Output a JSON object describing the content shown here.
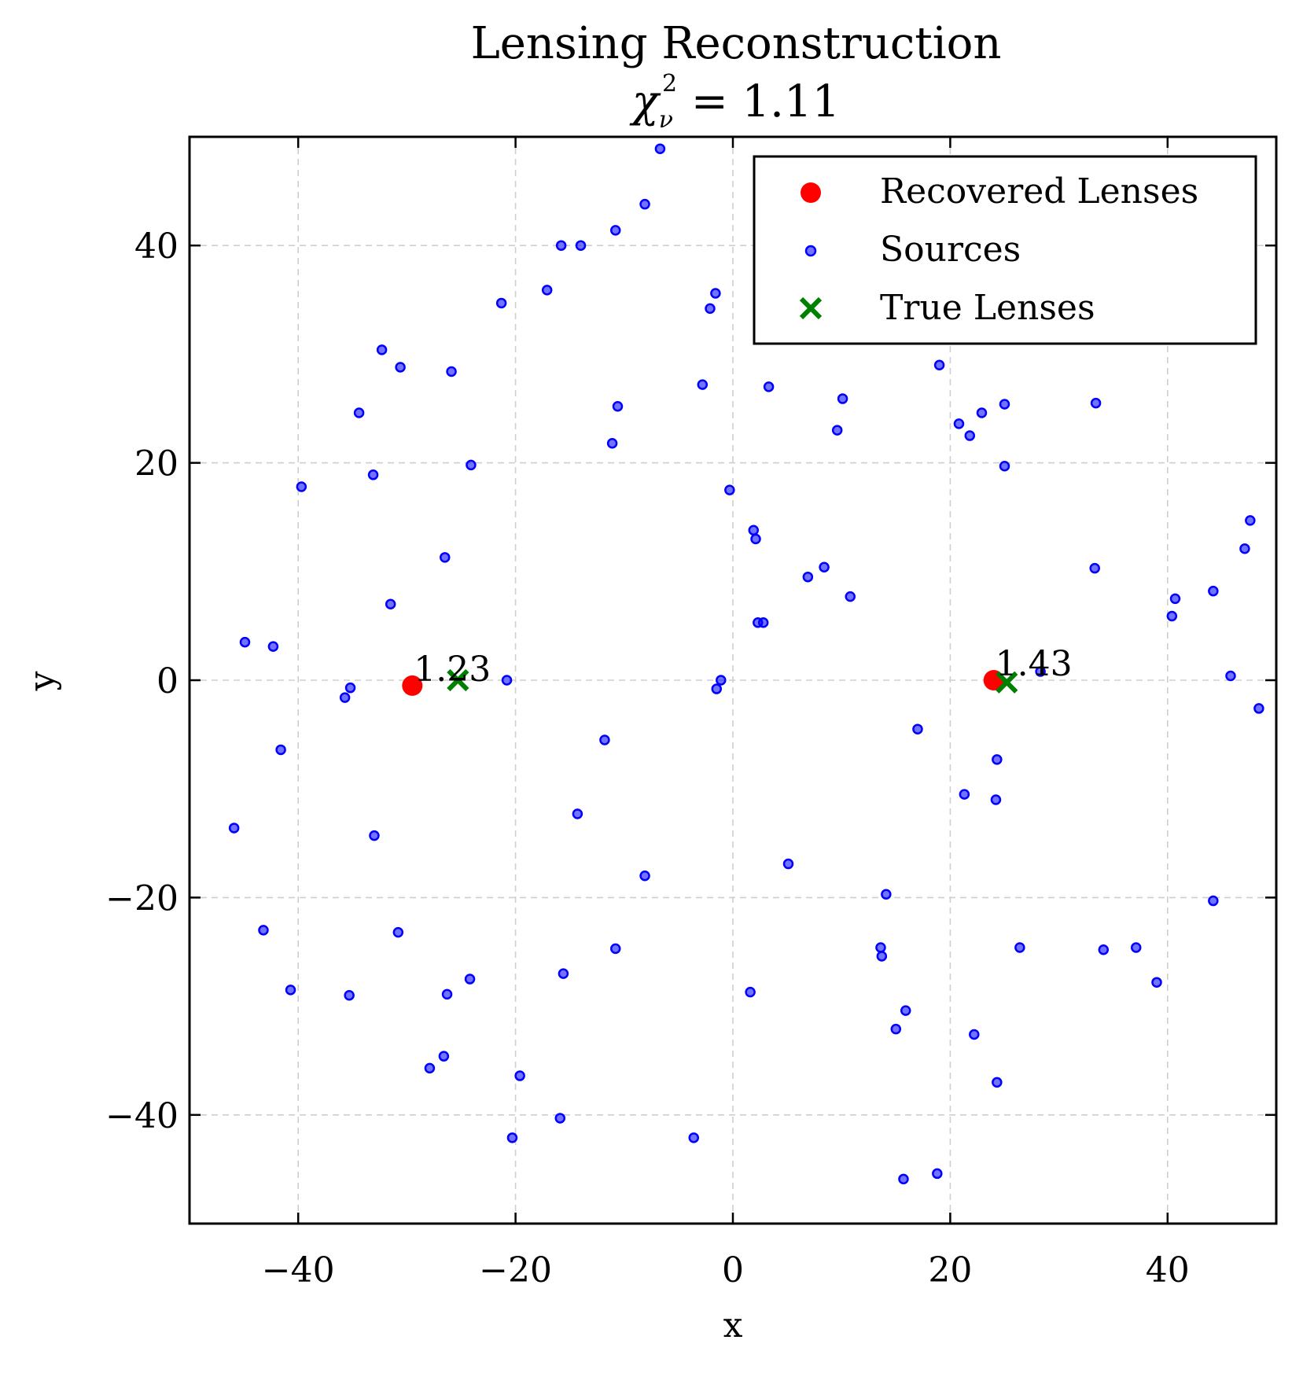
{
  "chart_data": {
    "type": "scatter",
    "title": "Lensing Reconstruction",
    "subtitle": {
      "symbol": "χ",
      "sub": "ν",
      "sup": "2",
      "text": " = 1.11"
    },
    "xlabel": "x",
    "ylabel": "y",
    "xlim": [
      -50,
      50
    ],
    "ylim": [
      -50,
      50
    ],
    "xticks": [
      -40,
      -20,
      0,
      20,
      40
    ],
    "yticks": [
      -40,
      -20,
      0,
      20,
      40
    ],
    "xtick_labels": [
      "−40",
      "−20",
      "0",
      "20",
      "40"
    ],
    "ytick_labels": [
      "−40",
      "−20",
      "0",
      "20",
      "40"
    ],
    "grid": true,
    "legend_position": "upper right",
    "series": [
      {
        "name": "Recovered Lenses",
        "marker": "circle",
        "color": "#ff0000",
        "points": [
          [
            -29.5,
            -0.5
          ],
          [
            24.0,
            0.0
          ]
        ]
      },
      {
        "name": "Sources",
        "marker": "small-circle",
        "color": "#0000ff",
        "points": [
          [
            -6.7,
            48.9
          ],
          [
            -8.1,
            43.8
          ],
          [
            -10.8,
            41.4
          ],
          [
            -15.8,
            40.0
          ],
          [
            -14.0,
            40.0
          ],
          [
            -17.1,
            35.9
          ],
          [
            -21.3,
            34.7
          ],
          [
            -1.6,
            35.6
          ],
          [
            -2.1,
            34.2
          ],
          [
            -32.3,
            30.4
          ],
          [
            -30.6,
            28.8
          ],
          [
            -25.9,
            28.4
          ],
          [
            -2.8,
            27.2
          ],
          [
            3.3,
            27.0
          ],
          [
            19.0,
            29.0
          ],
          [
            -34.4,
            24.6
          ],
          [
            -10.6,
            25.2
          ],
          [
            10.1,
            25.9
          ],
          [
            9.6,
            23.0
          ],
          [
            20.8,
            23.6
          ],
          [
            22.9,
            24.6
          ],
          [
            21.8,
            22.5
          ],
          [
            25.0,
            25.4
          ],
          [
            33.4,
            25.5
          ],
          [
            -11.1,
            21.8
          ],
          [
            -24.1,
            19.8
          ],
          [
            -33.1,
            18.9
          ],
          [
            -39.7,
            17.8
          ],
          [
            25.0,
            19.7
          ],
          [
            -0.3,
            17.5
          ],
          [
            1.9,
            13.8
          ],
          [
            2.1,
            13.0
          ],
          [
            47.6,
            14.7
          ],
          [
            47.1,
            12.1
          ],
          [
            -26.5,
            11.3
          ],
          [
            6.9,
            9.5
          ],
          [
            8.4,
            10.4
          ],
          [
            33.3,
            10.3
          ],
          [
            -31.5,
            7.0
          ],
          [
            10.8,
            7.7
          ],
          [
            40.7,
            7.5
          ],
          [
            44.2,
            8.2
          ],
          [
            40.4,
            5.9
          ],
          [
            2.3,
            5.3
          ],
          [
            2.8,
            5.3
          ],
          [
            -44.9,
            3.5
          ],
          [
            -42.3,
            3.1
          ],
          [
            -35.2,
            -0.7
          ],
          [
            -35.7,
            -1.6
          ],
          [
            -20.8,
            0.0
          ],
          [
            -1.1,
            0.0
          ],
          [
            -1.5,
            -0.8
          ],
          [
            28.3,
            0.8
          ],
          [
            45.8,
            0.4
          ],
          [
            48.4,
            -2.6
          ],
          [
            -41.6,
            -6.4
          ],
          [
            -11.8,
            -5.5
          ],
          [
            17.0,
            -4.5
          ],
          [
            24.3,
            -7.3
          ],
          [
            21.3,
            -10.5
          ],
          [
            24.2,
            -11.0
          ],
          [
            -45.9,
            -13.6
          ],
          [
            -33.0,
            -14.3
          ],
          [
            -14.3,
            -12.3
          ],
          [
            5.1,
            -16.9
          ],
          [
            -8.1,
            -18.0
          ],
          [
            14.1,
            -19.7
          ],
          [
            44.2,
            -20.3
          ],
          [
            -43.2,
            -23.0
          ],
          [
            -30.8,
            -23.2
          ],
          [
            -10.8,
            -24.7
          ],
          [
            13.6,
            -24.6
          ],
          [
            13.7,
            -25.4
          ],
          [
            26.4,
            -24.6
          ],
          [
            34.1,
            -24.8
          ],
          [
            37.1,
            -24.6
          ],
          [
            -15.6,
            -27.0
          ],
          [
            -24.2,
            -27.5
          ],
          [
            -40.7,
            -28.5
          ],
          [
            -35.3,
            -29.0
          ],
          [
            -26.3,
            -28.9
          ],
          [
            1.6,
            -28.7
          ],
          [
            39.0,
            -27.8
          ],
          [
            15.9,
            -30.4
          ],
          [
            15.0,
            -32.1
          ],
          [
            22.2,
            -32.6
          ],
          [
            -26.6,
            -34.6
          ],
          [
            -27.9,
            -35.7
          ],
          [
            -19.6,
            -36.4
          ],
          [
            24.3,
            -37.0
          ],
          [
            -15.9,
            -40.3
          ],
          [
            -20.3,
            -42.1
          ],
          [
            -3.6,
            -42.1
          ],
          [
            15.7,
            -45.9
          ],
          [
            18.8,
            -45.4
          ]
        ]
      },
      {
        "name": "True Lenses",
        "marker": "x",
        "color": "#008000",
        "points": [
          [
            -25.3,
            0.0
          ],
          [
            25.2,
            -0.2
          ]
        ]
      }
    ],
    "annotations": [
      {
        "text": "1.23",
        "x": -29.5,
        "y": -0.5
      },
      {
        "text": "1.43",
        "x": 24.0,
        "y": 0.0
      }
    ]
  }
}
